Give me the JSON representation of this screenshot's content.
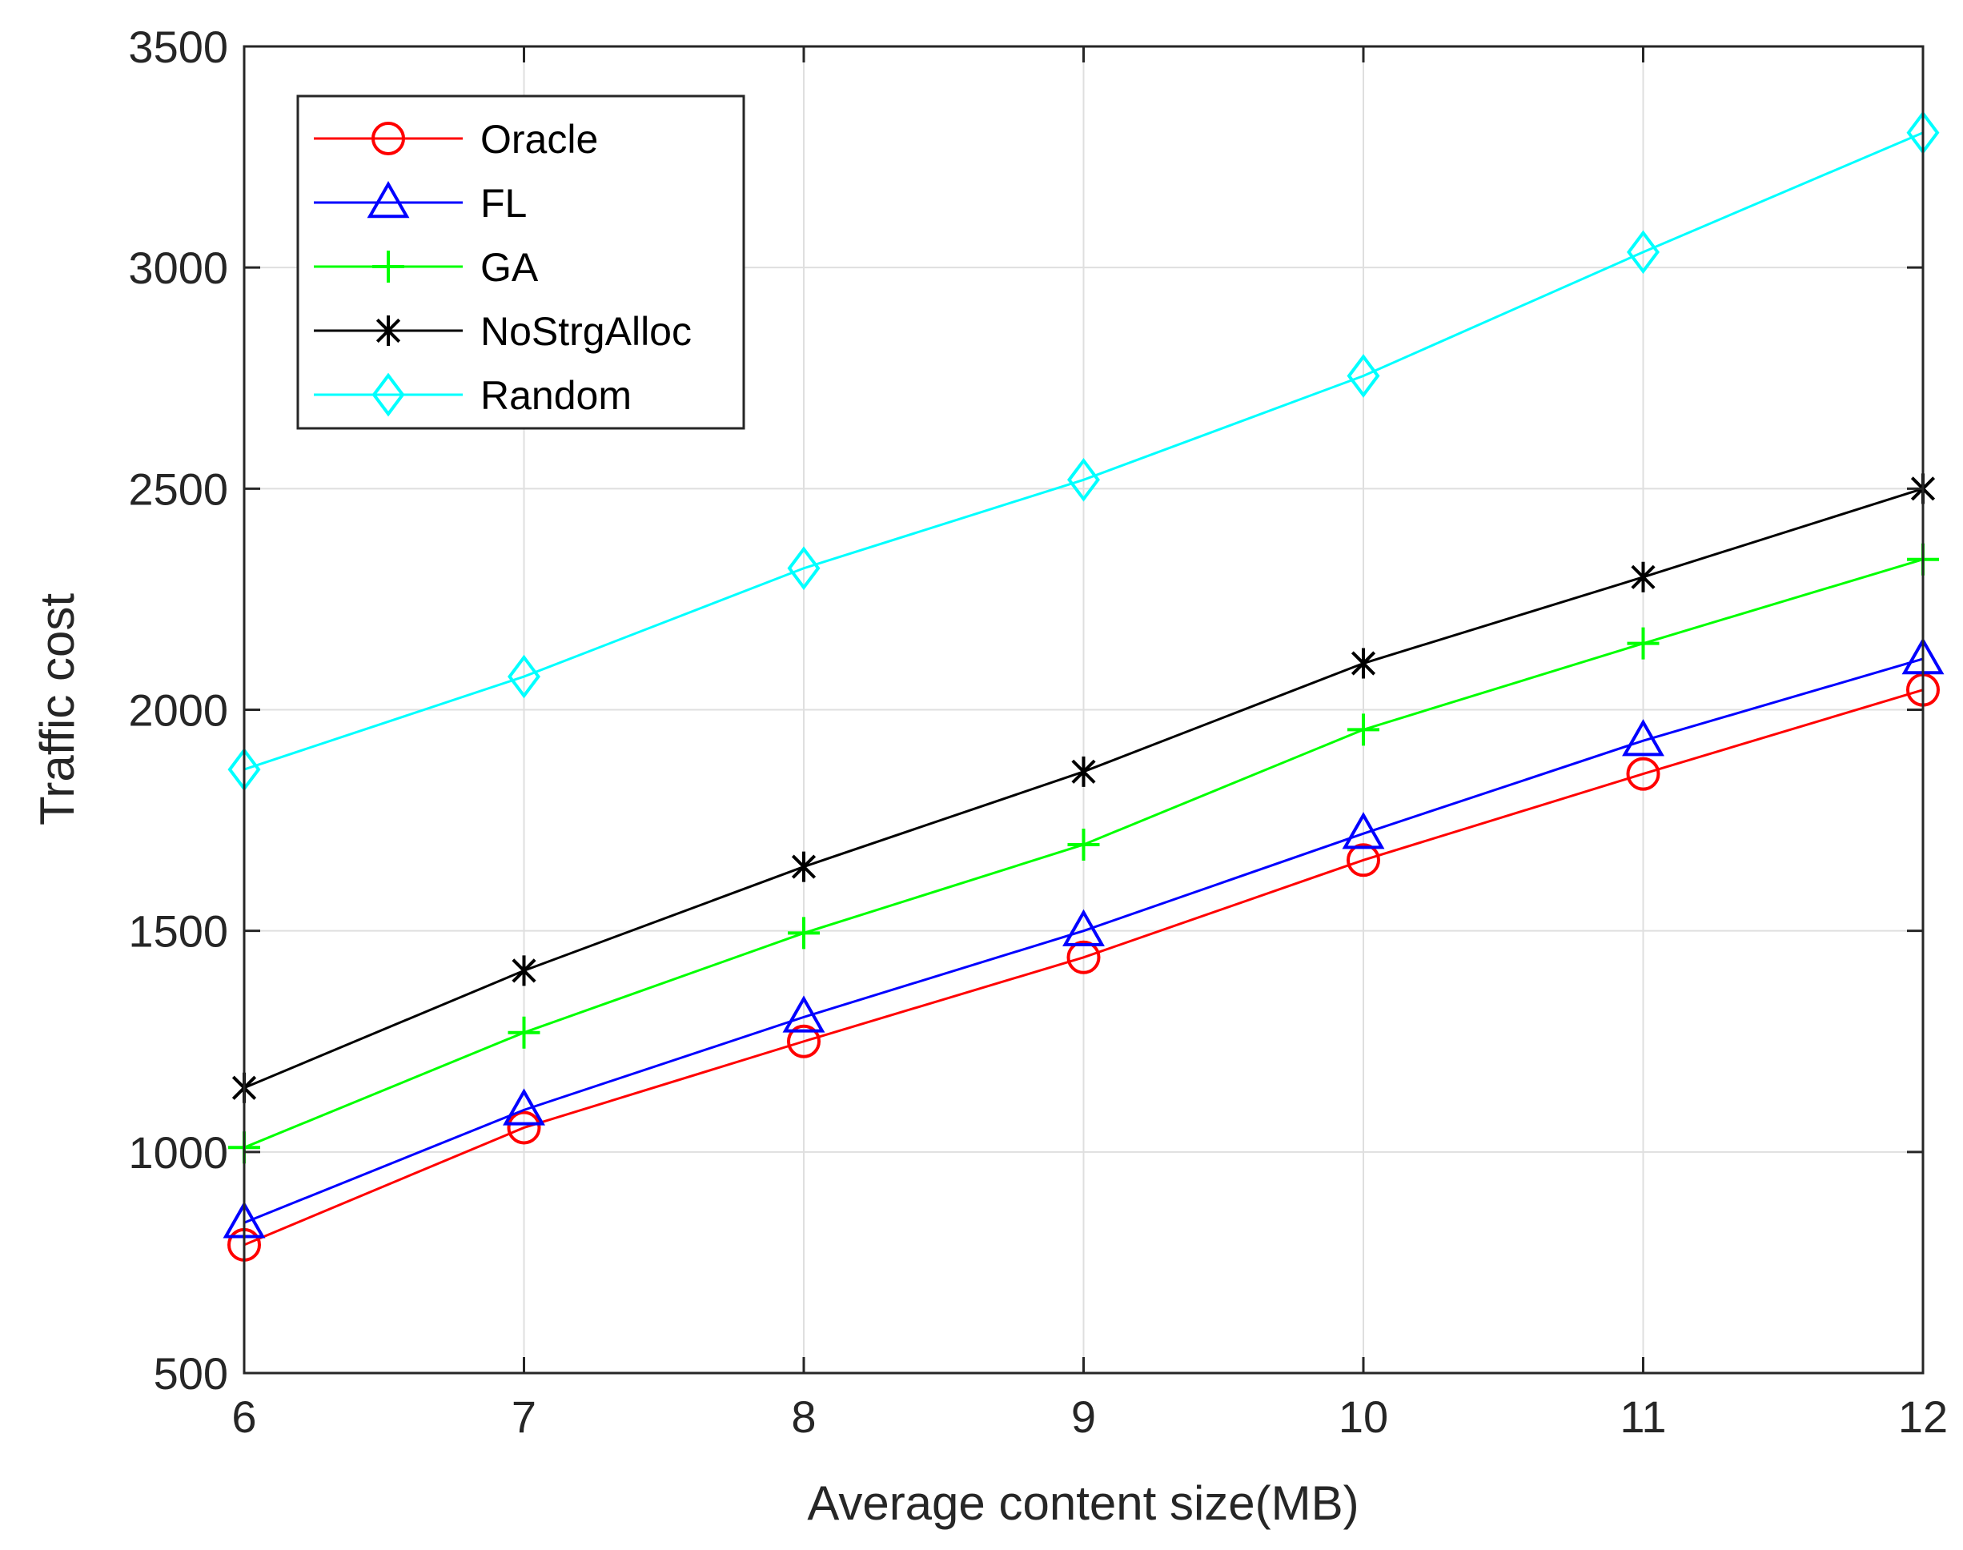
{
  "chart_data": {
    "type": "line",
    "title": "",
    "xlabel": "Average content size(MB)",
    "ylabel": "Traffic cost",
    "x": [
      6,
      7,
      8,
      9,
      10,
      11,
      12
    ],
    "xlim": [
      6,
      12
    ],
    "ylim": [
      500,
      3500
    ],
    "xticks": [
      "6",
      "7",
      "8",
      "9",
      "10",
      "11",
      "12"
    ],
    "yticks": [
      "500",
      "1000",
      "1500",
      "2000",
      "2500",
      "3000",
      "3500"
    ],
    "grid": true,
    "legend_position": "top-left",
    "series": [
      {
        "name": "Oracle",
        "color": "#ff0000",
        "marker": "circle",
        "values": [
          790,
          1055,
          1250,
          1440,
          1660,
          1855,
          2045
        ]
      },
      {
        "name": "FL",
        "color": "#0000ff",
        "marker": "triangle",
        "values": [
          840,
          1095,
          1305,
          1500,
          1720,
          1930,
          2115
        ]
      },
      {
        "name": "GA",
        "color": "#00ff00",
        "marker": "plus",
        "values": [
          1010,
          1270,
          1495,
          1695,
          1955,
          2150,
          2340
        ]
      },
      {
        "name": "NoStrgAlloc",
        "color": "#000000",
        "marker": "asterisk",
        "values": [
          1145,
          1410,
          1645,
          1860,
          2105,
          2300,
          2500
        ]
      },
      {
        "name": "Random",
        "color": "#00ffff",
        "marker": "diamond",
        "values": [
          1865,
          2075,
          2320,
          2520,
          2755,
          3035,
          3305
        ]
      }
    ]
  }
}
